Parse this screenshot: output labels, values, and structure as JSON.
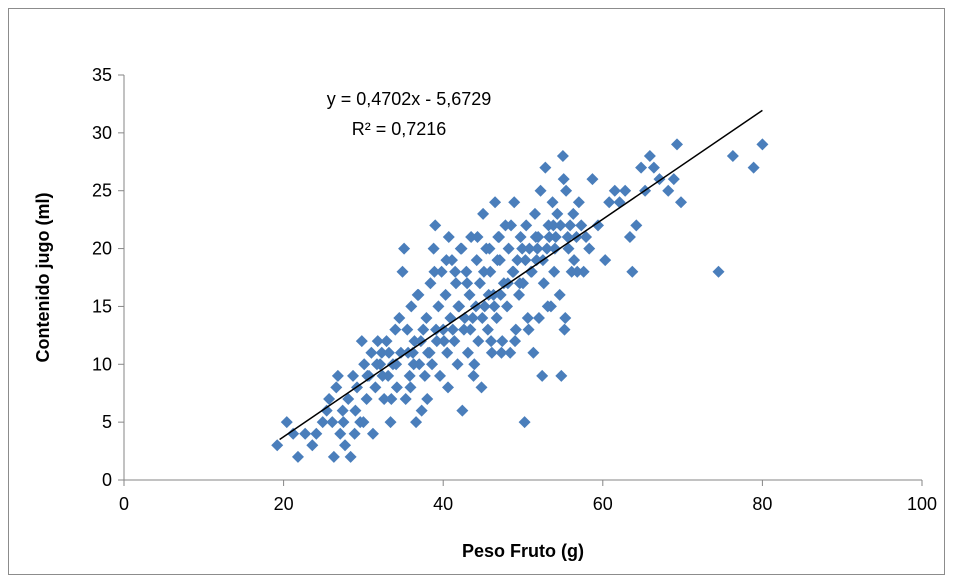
{
  "chart_data": {
    "type": "scatter",
    "xlabel": "Peso Fruto (g)",
    "ylabel": "Contenido jugo (ml)",
    "xlim": [
      0,
      100
    ],
    "ylim": [
      0,
      35
    ],
    "xticks": [
      0,
      20,
      40,
      60,
      80,
      100
    ],
    "yticks": [
      0,
      5,
      10,
      15,
      20,
      25,
      30,
      35
    ],
    "xtick_labels": [
      "0",
      "20",
      "40",
      "60",
      "80",
      "100"
    ],
    "ytick_labels": [
      "0",
      "5",
      "10",
      "15",
      "20",
      "25",
      "30",
      "35"
    ],
    "grid": false,
    "legend": "none",
    "marker": "diamond",
    "marker_color": "#4a7ebb",
    "trendline": {
      "slope": 0.4702,
      "intercept": -5.6729,
      "x_range": [
        19.5,
        80
      ],
      "color": "#000000",
      "equation_label": "y = 0,4702x - 5,6729",
      "r2_label": "R² = 0,7216"
    },
    "points": [
      [
        19.2,
        3
      ],
      [
        20.4,
        5
      ],
      [
        21.2,
        4
      ],
      [
        21.8,
        2
      ],
      [
        22.7,
        4
      ],
      [
        23.6,
        3
      ],
      [
        24.1,
        4
      ],
      [
        24.9,
        5
      ],
      [
        25.4,
        6
      ],
      [
        25.7,
        7
      ],
      [
        26.1,
        5
      ],
      [
        26.3,
        2
      ],
      [
        26.6,
        8
      ],
      [
        26.8,
        9
      ],
      [
        27.1,
        4
      ],
      [
        27.4,
        6
      ],
      [
        27.7,
        3
      ],
      [
        28.1,
        7
      ],
      [
        28.4,
        2
      ],
      [
        28.7,
        9
      ],
      [
        28.9,
        4
      ],
      [
        29.2,
        8
      ],
      [
        29.6,
        5
      ],
      [
        29.8,
        12
      ],
      [
        30.1,
        10
      ],
      [
        30.4,
        7
      ],
      [
        30.7,
        9
      ],
      [
        31.0,
        11
      ],
      [
        31.2,
        4
      ],
      [
        31.5,
        8
      ],
      [
        31.8,
        12
      ],
      [
        32.1,
        10
      ],
      [
        32.4,
        9
      ],
      [
        32.6,
        7
      ],
      [
        32.9,
        12
      ],
      [
        33.2,
        11
      ],
      [
        33.4,
        5
      ],
      [
        33.7,
        10
      ],
      [
        34.0,
        13
      ],
      [
        34.2,
        8
      ],
      [
        34.5,
        14
      ],
      [
        34.7,
        11
      ],
      [
        34.9,
        18
      ],
      [
        35.1,
        20
      ],
      [
        35.3,
        7
      ],
      [
        35.5,
        13
      ],
      [
        35.8,
        9
      ],
      [
        36.0,
        15
      ],
      [
        36.2,
        11
      ],
      [
        36.4,
        12
      ],
      [
        36.6,
        5
      ],
      [
        36.8,
        16
      ],
      [
        37.0,
        10
      ],
      [
        37.3,
        6
      ],
      [
        37.5,
        13
      ],
      [
        37.7,
        9
      ],
      [
        37.9,
        14
      ],
      [
        38.1,
        11
      ],
      [
        38.4,
        17
      ],
      [
        38.6,
        10
      ],
      [
        38.8,
        20
      ],
      [
        39.0,
        22
      ],
      [
        39.2,
        12
      ],
      [
        39.4,
        15
      ],
      [
        39.6,
        9
      ],
      [
        39.8,
        18
      ],
      [
        40.0,
        13
      ],
      [
        40.3,
        16
      ],
      [
        40.5,
        11
      ],
      [
        40.7,
        21
      ],
      [
        40.9,
        14
      ],
      [
        41.1,
        19
      ],
      [
        41.4,
        12
      ],
      [
        41.6,
        17
      ],
      [
        41.8,
        10
      ],
      [
        42.0,
        15
      ],
      [
        42.2,
        20
      ],
      [
        42.4,
        6
      ],
      [
        42.6,
        13
      ],
      [
        42.9,
        18
      ],
      [
        43.1,
        11
      ],
      [
        43.3,
        16
      ],
      [
        43.5,
        21
      ],
      [
        43.7,
        14
      ],
      [
        43.9,
        10
      ],
      [
        44.2,
        19
      ],
      [
        44.4,
        12
      ],
      [
        44.6,
        17
      ],
      [
        44.8,
        8
      ],
      [
        45.0,
        23
      ],
      [
        45.2,
        15
      ],
      [
        45.4,
        20
      ],
      [
        45.6,
        13
      ],
      [
        45.9,
        18
      ],
      [
        46.1,
        11
      ],
      [
        46.3,
        16
      ],
      [
        46.5,
        24
      ],
      [
        46.7,
        14
      ],
      [
        46.9,
        21
      ],
      [
        47.1,
        19
      ],
      [
        47.4,
        12
      ],
      [
        47.6,
        17
      ],
      [
        47.8,
        22
      ],
      [
        48.0,
        15
      ],
      [
        48.2,
        20
      ],
      [
        48.4,
        11
      ],
      [
        48.7,
        18
      ],
      [
        48.9,
        24
      ],
      [
        49.1,
        13
      ],
      [
        49.3,
        19
      ],
      [
        49.5,
        16
      ],
      [
        49.7,
        21
      ],
      [
        50.0,
        17
      ],
      [
        50.2,
        5
      ],
      [
        50.4,
        22
      ],
      [
        50.6,
        14
      ],
      [
        50.8,
        20
      ],
      [
        51.1,
        18
      ],
      [
        51.3,
        11
      ],
      [
        51.5,
        23
      ],
      [
        51.7,
        19
      ],
      [
        51.9,
        21
      ],
      [
        52.2,
        25
      ],
      [
        52.4,
        9
      ],
      [
        52.6,
        17
      ],
      [
        52.8,
        27
      ],
      [
        53.0,
        20
      ],
      [
        53.2,
        22
      ],
      [
        53.5,
        15
      ],
      [
        53.7,
        24
      ],
      [
        53.9,
        18
      ],
      [
        54.1,
        21
      ],
      [
        54.3,
        23
      ],
      [
        54.6,
        16
      ],
      [
        54.8,
        9
      ],
      [
        55.0,
        28
      ],
      [
        55.2,
        13
      ],
      [
        55.4,
        25
      ],
      [
        55.7,
        20
      ],
      [
        55.9,
        22
      ],
      [
        56.1,
        18
      ],
      [
        56.4,
        19
      ],
      [
        56.7,
        21
      ],
      [
        57.0,
        24
      ],
      [
        57.3,
        22
      ],
      [
        57.6,
        18
      ],
      [
        57.9,
        21
      ],
      [
        58.3,
        20
      ],
      [
        58.7,
        26
      ],
      [
        59.4,
        22
      ],
      [
        60.3,
        19
      ],
      [
        60.8,
        24
      ],
      [
        61.5,
        25
      ],
      [
        62.1,
        24
      ],
      [
        62.8,
        25
      ],
      [
        63.4,
        21
      ],
      [
        63.7,
        18
      ],
      [
        64.2,
        22
      ],
      [
        64.8,
        27
      ],
      [
        65.3,
        25
      ],
      [
        65.9,
        28
      ],
      [
        66.4,
        27
      ],
      [
        67.1,
        26
      ],
      [
        68.2,
        25
      ],
      [
        68.9,
        26
      ],
      [
        69.3,
        29
      ],
      [
        69.8,
        24
      ],
      [
        74.5,
        18
      ],
      [
        76.3,
        28
      ],
      [
        78.9,
        27
      ],
      [
        80.0,
        29
      ],
      [
        30.5,
        9
      ],
      [
        31.7,
        10
      ],
      [
        32.3,
        11
      ],
      [
        33.1,
        9
      ],
      [
        34.1,
        10
      ],
      [
        35.6,
        11
      ],
      [
        36.3,
        10
      ],
      [
        37.2,
        12
      ],
      [
        38.3,
        11
      ],
      [
        39.1,
        13
      ],
      [
        40.1,
        12
      ],
      [
        41.2,
        13
      ],
      [
        41.9,
        15
      ],
      [
        42.7,
        14
      ],
      [
        43.4,
        13
      ],
      [
        44.1,
        15
      ],
      [
        44.9,
        14
      ],
      [
        45.7,
        16
      ],
      [
        46.4,
        15
      ],
      [
        47.2,
        16
      ],
      [
        48.1,
        17
      ],
      [
        48.8,
        18
      ],
      [
        49.6,
        17
      ],
      [
        50.3,
        19
      ],
      [
        51.0,
        18
      ],
      [
        51.8,
        20
      ],
      [
        52.5,
        19
      ],
      [
        53.3,
        21
      ],
      [
        54.0,
        20
      ],
      [
        54.7,
        22
      ],
      [
        55.6,
        21
      ],
      [
        56.3,
        23
      ],
      [
        27.5,
        5
      ],
      [
        29.0,
        6
      ],
      [
        30.0,
        5
      ],
      [
        33.5,
        7
      ],
      [
        35.9,
        8
      ],
      [
        38.0,
        7
      ],
      [
        40.6,
        8
      ],
      [
        43.8,
        9
      ],
      [
        46.0,
        12
      ],
      [
        47.3,
        11
      ],
      [
        49.0,
        12
      ],
      [
        50.7,
        13
      ],
      [
        52.0,
        14
      ],
      [
        53.1,
        15
      ],
      [
        55.3,
        14
      ],
      [
        56.8,
        18
      ],
      [
        36.9,
        16
      ],
      [
        38.9,
        18
      ],
      [
        40.4,
        19
      ],
      [
        42.3,
        20
      ],
      [
        44.3,
        21
      ],
      [
        45.8,
        20
      ],
      [
        47.0,
        21
      ],
      [
        48.5,
        22
      ],
      [
        41.5,
        18
      ],
      [
        43.0,
        17
      ],
      [
        45.1,
        18
      ],
      [
        46.8,
        19
      ],
      [
        49.9,
        20
      ],
      [
        51.6,
        21
      ],
      [
        53.8,
        22
      ],
      [
        55.1,
        26
      ]
    ]
  }
}
